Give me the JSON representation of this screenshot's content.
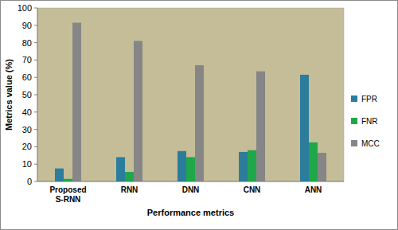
{
  "chart_data": {
    "type": "bar",
    "x_label": "Performance metrics",
    "y_label": "Metrics value (%)",
    "categories": [
      "Proposed S-RNN",
      "RNN",
      "DNN",
      "CNN",
      "ANN"
    ],
    "series": [
      {
        "name": "FPR",
        "color": "#2c7c9c",
        "values": [
          7.5,
          14,
          17.5,
          17,
          61.5
        ]
      },
      {
        "name": "FNR",
        "color": "#1ea84a",
        "values": [
          1.5,
          5.5,
          14,
          18,
          22.5
        ]
      },
      {
        "name": "MCC",
        "color": "#868686",
        "values": [
          91.5,
          81,
          67,
          63.5,
          16.5
        ]
      }
    ],
    "ylim": [
      0,
      100
    ],
    "yticks": [
      0,
      10,
      20,
      30,
      40,
      50,
      60,
      70,
      80,
      90,
      100
    ],
    "grid": false,
    "legend": "right"
  }
}
